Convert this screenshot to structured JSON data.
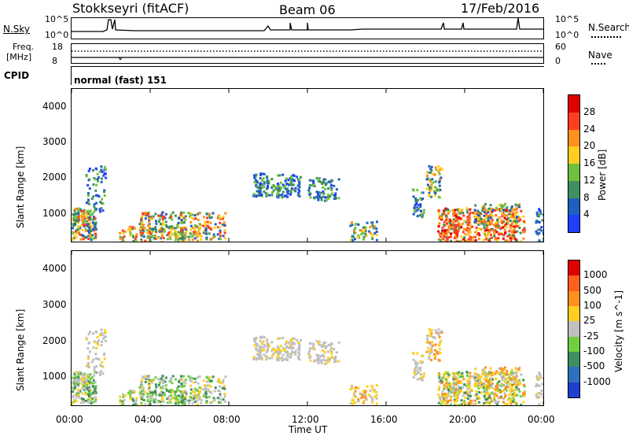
{
  "header": {
    "station": "Stokkseyri (fitACF)",
    "beam": "Beam 06",
    "date": "17/Feb/2016"
  },
  "strips": {
    "nsky_label": "N.Sky",
    "nsky_ticks": [
      "10^5",
      "10^0"
    ],
    "nsearch_label": "N.Search",
    "nsearch_ticks": [
      "10^5",
      "10^0"
    ],
    "freq_label": "Freq.",
    "freq_unit": "[MHz]",
    "freq_ticks": [
      "18",
      "8"
    ],
    "nave_label": "Nave",
    "nave_ticks": [
      "60",
      "0"
    ],
    "cpid_label": "CPID",
    "cpid_text": "normal (fast) 151"
  },
  "chart_data": [
    {
      "type": "heatmap",
      "name": "power",
      "ylabel": "Slant Range [km]",
      "yticks": [
        "1000",
        "2000",
        "3000",
        "4000"
      ],
      "ylim": [
        180,
        4500
      ],
      "colorbar_label": "Power [dB]",
      "colorbar_ticks": [
        "4",
        "8",
        "12",
        "16",
        "20",
        "24",
        "28"
      ],
      "colors": [
        "#1f3fff",
        "#1f5fbf",
        "#3f8f5f",
        "#6fc03f",
        "#ffcf1f",
        "#ff8f1f",
        "#ff3f1f",
        "#e00000"
      ]
    },
    {
      "type": "heatmap",
      "name": "velocity",
      "ylabel": "Slant Range [km]",
      "yticks": [
        "1000",
        "2000",
        "3000",
        "4000"
      ],
      "ylim": [
        180,
        4500
      ],
      "colorbar_label": "Velocity [m s^-1]",
      "colorbar_ticks": [
        "1000",
        "500",
        "100",
        "25",
        "-25",
        "-100",
        "-500",
        "-1000"
      ],
      "colors": [
        "#1f3fcf",
        "#2f6fbf",
        "#3f8f5f",
        "#6fcf3f",
        "#bfbfbf",
        "#ffcf1f",
        "#ff8f1f",
        "#ff5f1f",
        "#e00000"
      ]
    }
  ],
  "xaxis": {
    "label": "Time UT",
    "ticks": [
      "00:00",
      "04:00",
      "08:00",
      "12:00",
      "16:00",
      "20:00",
      "00:00"
    ]
  }
}
